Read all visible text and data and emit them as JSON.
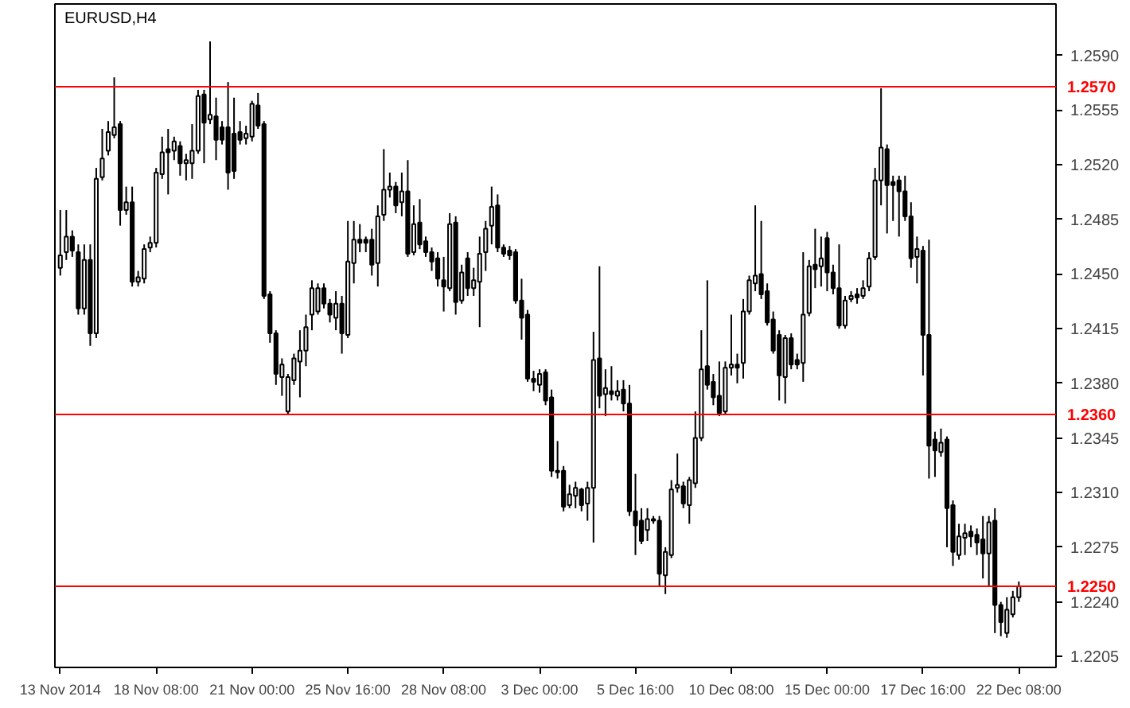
{
  "chart_data": {
    "type": "candlestick",
    "title": "EURUSD,H4",
    "categories": [
      "13 Nov 2014",
      null,
      null,
      null,
      null,
      null,
      null,
      null,
      null,
      null,
      null,
      null,
      null,
      null,
      null,
      null,
      "18 Nov 08:00",
      null,
      null,
      null,
      null,
      null,
      null,
      null,
      null,
      null,
      null,
      null,
      null,
      null,
      null,
      null,
      "21 Nov 00:00",
      null,
      null,
      null,
      null,
      null,
      null,
      null,
      null,
      null,
      null,
      null,
      null,
      null,
      null,
      null,
      "25 Nov 16:00",
      null,
      null,
      null,
      null,
      null,
      null,
      null,
      null,
      null,
      null,
      null,
      null,
      null,
      null,
      null,
      "28 Nov 08:00",
      null,
      null,
      null,
      null,
      null,
      null,
      null,
      null,
      null,
      null,
      null,
      null,
      null,
      null,
      null,
      "3 Dec 00:00",
      null,
      null,
      null,
      null,
      null,
      null,
      null,
      null,
      null,
      null,
      null,
      null,
      null,
      null,
      null,
      "5 Dec 16:00",
      null,
      null,
      null,
      null,
      null,
      null,
      null,
      null,
      null,
      null,
      null,
      null,
      null,
      null,
      null,
      "10 Dec 08:00",
      null,
      null,
      null,
      null,
      null,
      null,
      null,
      null,
      null,
      null,
      null,
      null,
      null,
      null,
      null,
      "15 Dec 00:00",
      null,
      null,
      null,
      null,
      null,
      null,
      null,
      null,
      null,
      null,
      null,
      null,
      null,
      null,
      null,
      "17 Dec 16:00",
      null,
      null,
      null,
      null,
      null,
      null,
      null,
      null,
      null,
      null,
      null,
      null,
      null,
      null,
      null,
      "22 Dec 08:00"
    ],
    "series": [
      {
        "color": "#000000",
        "ohlc": [
          [
            1.2454,
            1.2491,
            1.2449,
            1.2462
          ],
          [
            1.2464,
            1.2491,
            1.2459,
            1.2474
          ],
          [
            1.2474,
            1.2478,
            1.2461,
            1.2465
          ],
          [
            1.2464,
            1.2469,
            1.2424,
            1.2428
          ],
          [
            1.2428,
            1.2469,
            1.2424,
            1.2459
          ],
          [
            1.2459,
            1.2469,
            1.2404,
            1.2412
          ],
          [
            1.2412,
            1.2518,
            1.2409,
            1.2511
          ],
          [
            1.2512,
            1.2543,
            1.251,
            1.2524
          ],
          [
            1.2529,
            1.2548,
            1.2526,
            1.2541
          ],
          [
            1.2539,
            1.2576,
            1.2537,
            1.2544
          ],
          [
            1.2546,
            1.2548,
            1.2481,
            1.2491
          ],
          [
            1.2491,
            1.2506,
            1.2488,
            1.2496
          ],
          [
            1.2496,
            1.2506,
            1.2442,
            1.2445
          ],
          [
            1.2445,
            1.2452,
            1.2442,
            1.2448
          ],
          [
            1.2447,
            1.2469,
            1.2444,
            1.2466
          ],
          [
            1.2467,
            1.2474,
            1.2464,
            1.247
          ],
          [
            1.247,
            1.2518,
            1.2467,
            1.2515
          ],
          [
            1.2514,
            1.2538,
            1.2511,
            1.2528
          ],
          [
            1.253,
            1.2543,
            1.2501,
            1.2528
          ],
          [
            1.2529,
            1.2538,
            1.2523,
            1.2535
          ],
          [
            1.2532,
            1.2535,
            1.2513,
            1.2521
          ],
          [
            1.2521,
            1.2527,
            1.251,
            1.2523
          ],
          [
            1.2521,
            1.2546,
            1.2511,
            1.2529
          ],
          [
            1.2529,
            1.2568,
            1.2527,
            1.2564
          ],
          [
            1.2565,
            1.2568,
            1.2521,
            1.2547
          ],
          [
            1.2549,
            1.2599,
            1.2546,
            1.2552
          ],
          [
            1.2551,
            1.2563,
            1.2523,
            1.2536
          ],
          [
            1.2544,
            1.2548,
            1.2533,
            1.2536
          ],
          [
            1.2544,
            1.2573,
            1.2504,
            1.2515
          ],
          [
            1.254,
            1.2563,
            1.2511,
            1.2516
          ],
          [
            1.2541,
            1.2548,
            1.2533,
            1.2536
          ],
          [
            1.2537,
            1.2545,
            1.2533,
            1.254
          ],
          [
            1.2538,
            1.2561,
            1.2535,
            1.2559
          ],
          [
            1.2558,
            1.2566,
            1.2543,
            1.2545
          ],
          [
            1.2546,
            1.2548,
            1.2434,
            1.2436
          ],
          [
            1.2437,
            1.2439,
            1.2406,
            1.2412
          ],
          [
            1.2412,
            1.2414,
            1.2379,
            1.2386
          ],
          [
            1.2384,
            1.2396,
            1.2372,
            1.2392
          ],
          [
            1.2362,
            1.2386,
            1.236,
            1.2384
          ],
          [
            1.2382,
            1.2399,
            1.2379,
            1.2396
          ],
          [
            1.2394,
            1.2414,
            1.2371,
            1.2401
          ],
          [
            1.2401,
            1.2424,
            1.2391,
            1.2416
          ],
          [
            1.2424,
            1.2446,
            1.2414,
            1.2441
          ],
          [
            1.2426,
            1.2444,
            1.2424,
            1.2441
          ],
          [
            1.2441,
            1.2444,
            1.2428,
            1.2431
          ],
          [
            1.2431,
            1.2434,
            1.2419,
            1.2424
          ],
          [
            1.2422,
            1.2439,
            1.2414,
            1.2431
          ],
          [
            1.2431,
            1.2436,
            1.2399,
            1.2412
          ],
          [
            1.2411,
            1.2484,
            1.2409,
            1.2458
          ],
          [
            1.2457,
            1.2484,
            1.2444,
            1.2472
          ],
          [
            1.2472,
            1.2482,
            1.2464,
            1.247
          ],
          [
            1.2472,
            1.2474,
            1.2464,
            1.247
          ],
          [
            1.2472,
            1.2479,
            1.2449,
            1.2456
          ],
          [
            1.2457,
            1.2494,
            1.2442,
            1.2487
          ],
          [
            1.2488,
            1.253,
            1.2484,
            1.2504
          ],
          [
            1.2504,
            1.2515,
            1.2499,
            1.2506
          ],
          [
            1.2506,
            1.2509,
            1.2489,
            1.2494
          ],
          [
            1.2496,
            1.2515,
            1.2487,
            1.2503
          ],
          [
            1.2503,
            1.2523,
            1.2461,
            1.2463
          ],
          [
            1.2464,
            1.2494,
            1.2462,
            1.2482
          ],
          [
            1.2483,
            1.2498,
            1.2466,
            1.2469
          ],
          [
            1.2471,
            1.2474,
            1.2461,
            1.2464
          ],
          [
            1.2464,
            1.2467,
            1.2452,
            1.2458
          ],
          [
            1.246,
            1.2464,
            1.2442,
            1.2447
          ],
          [
            1.2446,
            1.2461,
            1.2426,
            1.2442
          ],
          [
            1.2441,
            1.2489,
            1.2439,
            1.2482
          ],
          [
            1.2483,
            1.2487,
            1.2424,
            1.2432
          ],
          [
            1.2433,
            1.2456,
            1.2431,
            1.2451
          ],
          [
            1.246,
            1.2464,
            1.2436,
            1.2441
          ],
          [
            1.2441,
            1.2454,
            1.2436,
            1.2446
          ],
          [
            1.2445,
            1.2474,
            1.2416,
            1.2463
          ],
          [
            1.2464,
            1.2484,
            1.2452,
            1.2479
          ],
          [
            1.2481,
            1.2506,
            1.2469,
            1.2493
          ],
          [
            1.2494,
            1.2501,
            1.2464,
            1.2467
          ],
          [
            1.2467,
            1.2469,
            1.2461,
            1.2463
          ],
          [
            1.2465,
            1.2468,
            1.2459,
            1.2462
          ],
          [
            1.2464,
            1.2466,
            1.2431,
            1.2433
          ],
          [
            1.2433,
            1.2447,
            1.2408,
            1.2422
          ],
          [
            1.2424,
            1.2427,
            1.2381,
            1.2383
          ],
          [
            1.2383,
            1.2388,
            1.2375,
            1.2381
          ],
          [
            1.2379,
            1.2389,
            1.2374,
            1.2386
          ],
          [
            1.2387,
            1.2389,
            1.2366,
            1.2369
          ],
          [
            1.2371,
            1.2376,
            1.232,
            1.2324
          ],
          [
            1.2324,
            1.2343,
            1.2319,
            1.2323
          ],
          [
            1.2324,
            1.2327,
            1.2298,
            1.2301
          ],
          [
            1.2302,
            1.2315,
            1.23,
            1.2309
          ],
          [
            1.2308,
            1.2317,
            1.23,
            1.2313
          ],
          [
            1.2312,
            1.2313,
            1.2298,
            1.2302
          ],
          [
            1.2303,
            1.2317,
            1.2292,
            1.2313
          ],
          [
            1.2313,
            1.2413,
            1.2278,
            1.2395
          ],
          [
            1.2396,
            1.2455,
            1.2364,
            1.2372
          ],
          [
            1.2373,
            1.2389,
            1.2359,
            1.2377
          ],
          [
            1.2375,
            1.2391,
            1.2369,
            1.2373
          ],
          [
            1.2372,
            1.2382,
            1.2369,
            1.2375
          ],
          [
            1.2376,
            1.2382,
            1.2362,
            1.2367
          ],
          [
            1.2367,
            1.2379,
            1.2295,
            1.2298
          ],
          [
            1.2298,
            1.2322,
            1.227,
            1.2289
          ],
          [
            1.2292,
            1.23,
            1.2277,
            1.2279
          ],
          [
            1.2286,
            1.23,
            1.2279,
            1.2293
          ],
          [
            1.2293,
            1.2295,
            1.229,
            1.2292
          ],
          [
            1.2292,
            1.2295,
            1.225,
            1.2258
          ],
          [
            1.2257,
            1.2275,
            1.2245,
            1.2272
          ],
          [
            1.227,
            1.2318,
            1.2268,
            1.2312
          ],
          [
            1.2313,
            1.2335,
            1.231,
            1.2315
          ],
          [
            1.2314,
            1.2317,
            1.23,
            1.2303
          ],
          [
            1.2302,
            1.232,
            1.229,
            1.2318
          ],
          [
            1.2316,
            1.2362,
            1.2313,
            1.2345
          ],
          [
            1.2345,
            1.2414,
            1.2343,
            1.2389
          ],
          [
            1.2391,
            1.2446,
            1.2376,
            1.2379
          ],
          [
            1.2381,
            1.2386,
            1.2366,
            1.2371
          ],
          [
            1.2372,
            1.2394,
            1.2359,
            1.2361
          ],
          [
            1.2362,
            1.2394,
            1.236,
            1.239
          ],
          [
            1.239,
            1.2424,
            1.2385,
            1.2392
          ],
          [
            1.2392,
            1.2399,
            1.238,
            1.239
          ],
          [
            1.2393,
            1.2434,
            1.2383,
            1.2426
          ],
          [
            1.2426,
            1.2449,
            1.2424,
            1.2446
          ],
          [
            1.2444,
            1.2494,
            1.2439,
            1.2449
          ],
          [
            1.245,
            1.2484,
            1.2434,
            1.2437
          ],
          [
            1.2439,
            1.2444,
            1.2417,
            1.2419
          ],
          [
            1.2421,
            1.2426,
            1.2399,
            1.2401
          ],
          [
            1.2411,
            1.2414,
            1.2369,
            1.2385
          ],
          [
            1.2384,
            1.2411,
            1.2367,
            1.2409
          ],
          [
            1.2409,
            1.2412,
            1.2389,
            1.2392
          ],
          [
            1.2395,
            1.2399,
            1.2389,
            1.2392
          ],
          [
            1.2393,
            1.2464,
            1.2381,
            1.2424
          ],
          [
            1.2425,
            1.2459,
            1.2423,
            1.2455
          ],
          [
            1.2456,
            1.2479,
            1.2441,
            1.2453
          ],
          [
            1.2455,
            1.2474,
            1.2442,
            1.246
          ],
          [
            1.2473,
            1.2477,
            1.2439,
            1.2451
          ],
          [
            1.2451,
            1.2456,
            1.2437,
            1.2441
          ],
          [
            1.2441,
            1.2469,
            1.2415,
            1.2417
          ],
          [
            1.2417,
            1.2436,
            1.2415,
            1.2433
          ],
          [
            1.2434,
            1.2439,
            1.2432,
            1.2436
          ],
          [
            1.2437,
            1.2441,
            1.2431,
            1.2435
          ],
          [
            1.2436,
            1.2446,
            1.2434,
            1.2441
          ],
          [
            1.2442,
            1.2464,
            1.2439,
            1.246
          ],
          [
            1.2461,
            1.2518,
            1.2459,
            1.251
          ],
          [
            1.251,
            1.2569,
            1.2494,
            1.2531
          ],
          [
            1.253,
            1.2533,
            1.2476,
            1.2507
          ],
          [
            1.2509,
            1.2513,
            1.2484,
            1.2507
          ],
          [
            1.251,
            1.2513,
            1.2474,
            1.2503
          ],
          [
            1.2503,
            1.2513,
            1.2484,
            1.2487
          ],
          [
            1.2487,
            1.2496,
            1.2454,
            1.246
          ],
          [
            1.2461,
            1.2474,
            1.2444,
            1.2466
          ],
          [
            1.2465,
            1.2468,
            1.2385,
            1.2411
          ],
          [
            1.2411,
            1.2472,
            1.2319,
            1.234
          ],
          [
            1.2344,
            1.2349,
            1.232,
            1.2337
          ],
          [
            1.2336,
            1.2351,
            1.2333,
            1.2342
          ],
          [
            1.2344,
            1.2346,
            1.2275,
            1.23
          ],
          [
            1.2302,
            1.2305,
            1.2263,
            1.2272
          ],
          [
            1.227,
            1.229,
            1.2267,
            1.2282
          ],
          [
            1.2281,
            1.229,
            1.227,
            1.2284
          ],
          [
            1.2285,
            1.2289,
            1.2275,
            1.2282
          ],
          [
            1.2283,
            1.2287,
            1.227,
            1.2278
          ],
          [
            1.228,
            1.2295,
            1.2255,
            1.2271
          ],
          [
            1.2271,
            1.2295,
            1.225,
            1.2291
          ],
          [
            1.2292,
            1.23,
            1.222,
            1.2238
          ],
          [
            1.2238,
            1.224,
            1.2218,
            1.2227
          ],
          [
            1.222,
            1.2243,
            1.2217,
            1.2235
          ],
          [
            1.2232,
            1.2247,
            1.223,
            1.2243
          ],
          [
            1.2243,
            1.2253,
            1.224,
            1.225
          ]
        ]
      }
    ],
    "ylim": [
      1.2198,
      1.2623
    ],
    "yticks": [
      1.2205,
      {
        "value": 1.224,
        "label": "1.2240"
      },
      1.2275,
      {
        "value": 1.231,
        "label": "1.2310"
      },
      1.2345,
      {
        "value": 1.238,
        "label": "1.2380"
      },
      1.2415,
      {
        "value": 1.245,
        "label": "1.2450"
      },
      1.2485,
      {
        "value": 1.252,
        "label": "1.2520"
      },
      1.2555,
      {
        "value": 1.259,
        "label": "1.2590"
      }
    ],
    "ref_lines": [
      {
        "axis": "y",
        "value": 1.257,
        "label": "1.2570",
        "color": "#ff0000"
      },
      {
        "axis": "y",
        "value": 1.236,
        "label": "1.2360",
        "color": "#ff0000"
      },
      {
        "axis": "y",
        "value": 1.225,
        "label": "1.2250",
        "color": "#ff0000"
      }
    ],
    "grid": false
  }
}
